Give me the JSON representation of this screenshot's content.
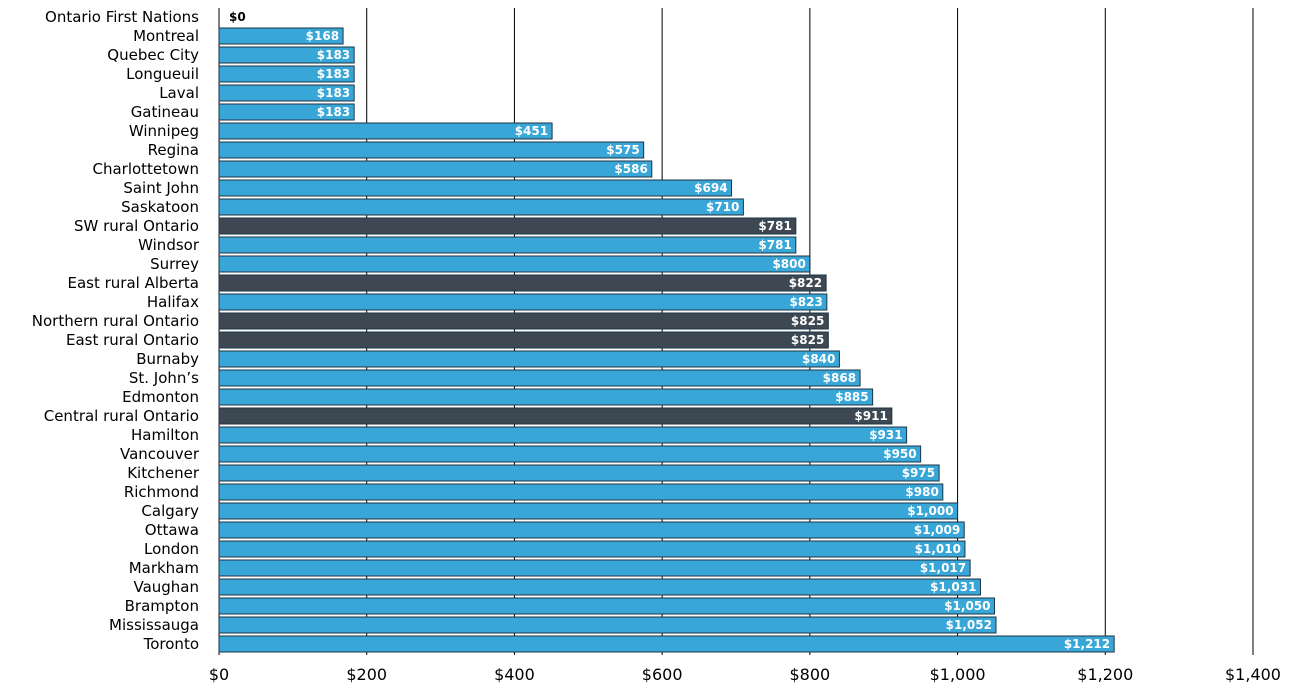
{
  "chart_data": {
    "type": "bar",
    "orientation": "horizontal",
    "title": "",
    "xlabel": "",
    "ylabel": "",
    "xlim": [
      0,
      1400
    ],
    "xticks": [
      0,
      200,
      400,
      600,
      800,
      1000,
      1200,
      1400
    ],
    "xtick_labels": [
      "$0",
      "$200",
      "$400",
      "$600",
      "$800",
      "$1,000",
      "$1,200",
      "$1,400"
    ],
    "grid": "vertical lines at each tick",
    "legend": "none",
    "colors": {
      "urban": "#39a6d8",
      "rural": "#3d4852",
      "edge": "#1d3445",
      "grid": "#000000"
    },
    "categories": [
      "Ontario First Nations",
      "Montreal",
      "Quebec City",
      "Longueuil",
      "Laval",
      "Gatineau",
      "Winnipeg",
      "Regina",
      "Charlottetown",
      "Saint John",
      "Saskatoon",
      "SW rural Ontario",
      "Windsor",
      "Surrey",
      "East rural Alberta",
      "Halifax",
      "Northern rural Ontario",
      "East rural Ontario",
      "Burnaby",
      "St. John’s",
      "Edmonton",
      "Central rural Ontario",
      "Hamilton",
      "Vancouver",
      "Kitchener",
      "Richmond",
      "Calgary",
      "Ottawa",
      "London",
      "Markham",
      "Vaughan",
      "Brampton",
      "Mississauga",
      "Toronto"
    ],
    "values": [
      0,
      168,
      183,
      183,
      183,
      183,
      451,
      575,
      586,
      694,
      710,
      781,
      781,
      800,
      822,
      823,
      825,
      825,
      840,
      868,
      885,
      911,
      931,
      950,
      975,
      980,
      1000,
      1009,
      1010,
      1017,
      1031,
      1050,
      1052,
      1212
    ],
    "value_labels": [
      "$0",
      "$168",
      "$183",
      "$183",
      "$183",
      "$183",
      "$451",
      "$575",
      "$586",
      "$694",
      "$710",
      "$781",
      "$781",
      "$800",
      "$822",
      "$823",
      "$825",
      "$825",
      "$840",
      "$868",
      "$885",
      "$911",
      "$931",
      "$950",
      "$975",
      "$980",
      "$1,000",
      "$1,009",
      "$1,010",
      "$1,017",
      "$1,031",
      "$1,050",
      "$1,052",
      "$1,212"
    ],
    "rural": [
      false,
      false,
      false,
      false,
      false,
      false,
      false,
      false,
      false,
      false,
      false,
      true,
      false,
      false,
      true,
      false,
      true,
      true,
      false,
      false,
      false,
      true,
      false,
      false,
      false,
      false,
      false,
      false,
      false,
      false,
      false,
      false,
      false,
      false
    ]
  }
}
